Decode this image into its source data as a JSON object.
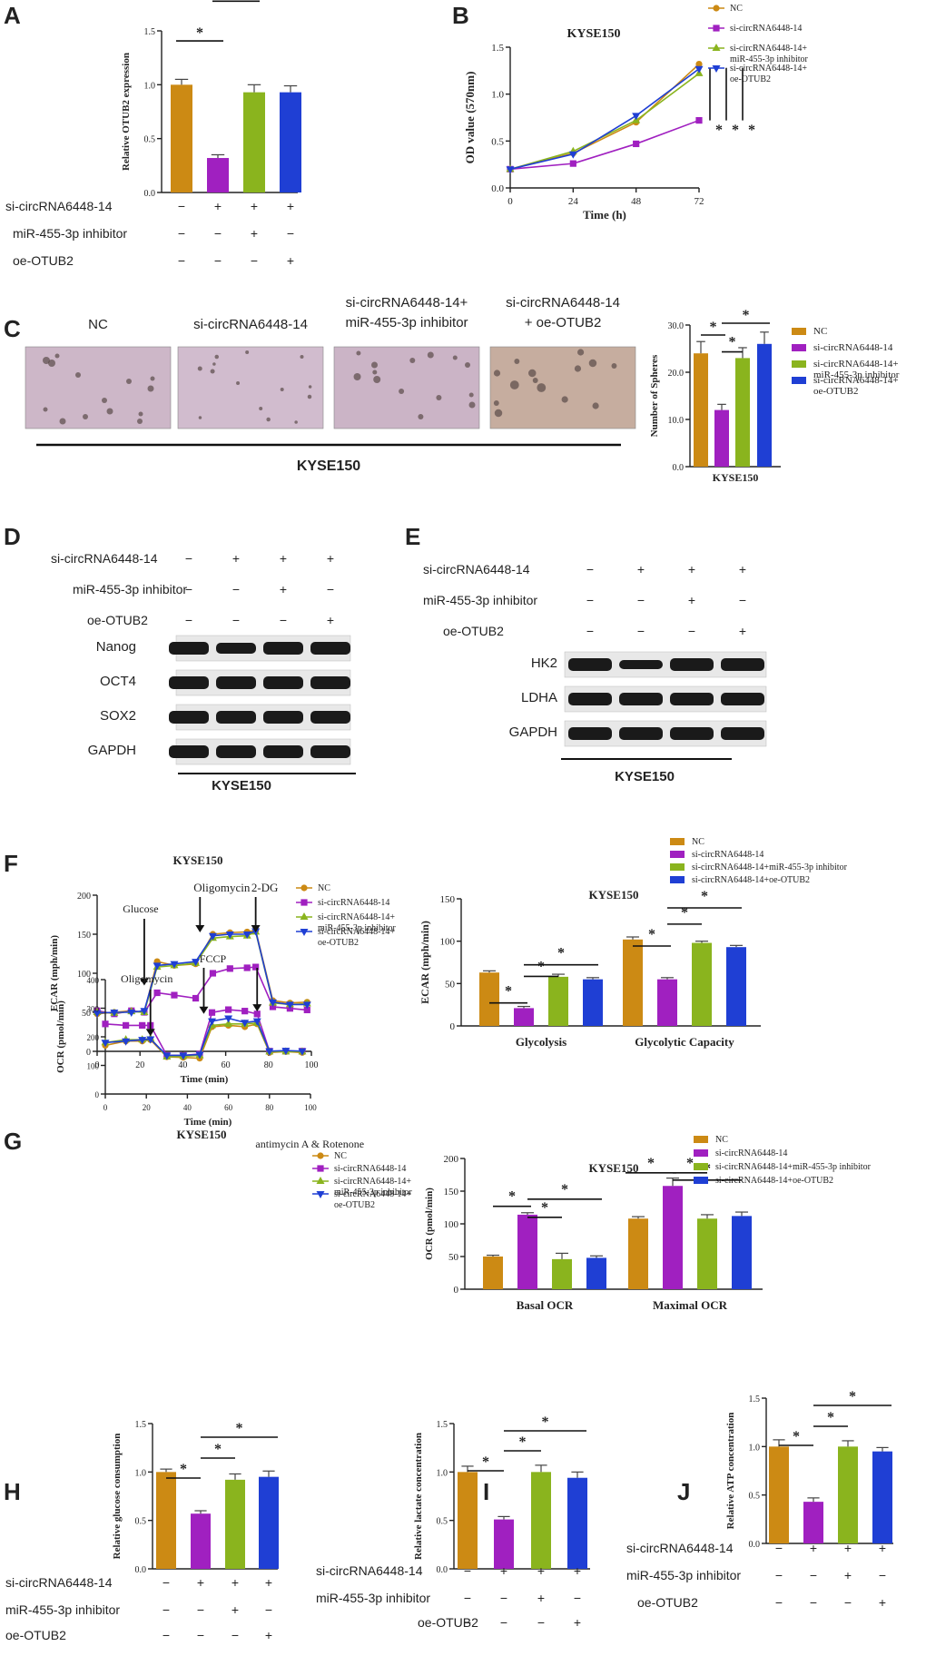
{
  "colors": {
    "NC": "#cc8a14",
    "si": "#a020c0",
    "inh": "#8ab41e",
    "oe": "#1f3fd4",
    "black": "#222222"
  },
  "treatment_rows": {
    "si": "si-circRNA6448-14",
    "inh": "miR-455-3p inhibitor",
    "oe": "oe-OTUB2",
    "pattern_si": [
      "−",
      "+",
      "+",
      "+"
    ],
    "pattern_inh": [
      "−",
      "−",
      "+",
      "−"
    ],
    "pattern_oe": [
      "−",
      "−",
      "−",
      "+"
    ]
  },
  "groups": [
    "NC",
    "si-circRNA6448-14",
    "si-circRNA6448-14+ miR-455-3p inhibitor",
    "si-circRNA6448-14+ oe-OTUB2"
  ],
  "legend_short": [
    "NC",
    "si-circRNA6448-14",
    "si-circRNA6448-14+miR-455-3p inhibitor",
    "si-circRNA6448-14+oe-OTUB2"
  ],
  "legend_two_line": [
    [
      "NC"
    ],
    [
      "si-circRNA6448-14"
    ],
    [
      "si-circRNA6448-14+",
      "miR-455-3p inhibitor"
    ],
    [
      "si-circRNA6448-14+",
      "oe-OTUB2"
    ]
  ],
  "cell_line": "KYSE150",
  "panels": {
    "A": {
      "letter": "A"
    },
    "B": {
      "letter": "B"
    },
    "C": {
      "letter": "C"
    },
    "D": {
      "letter": "D"
    },
    "E": {
      "letter": "E"
    },
    "F": {
      "letter": "F"
    },
    "G": {
      "letter": "G"
    },
    "H": {
      "letter": "H"
    },
    "I": {
      "letter": "I"
    },
    "J": {
      "letter": "J"
    }
  },
  "sig": "*",
  "sphere_images": {
    "labels": [
      "NC",
      "si-circRNA6448-14",
      "si-circRNA6448-14+\nmiR-455-3p inhibitor",
      "si-circRNA6448-14\n+ oe-OTUB2"
    ],
    "caption": "KYSE150"
  },
  "blot_D": {
    "bands": [
      "Nanog",
      "OCT4",
      "SOX2",
      "GAPDH"
    ],
    "caption": "KYSE150"
  },
  "blot_E": {
    "bands": [
      "HK2",
      "LDHA",
      "GAPDH"
    ],
    "caption": "KYSE150"
  },
  "injections_F": [
    "Glucose",
    "Oligomycin",
    "2-DG"
  ],
  "injections_G": [
    "Oligomycin",
    "FCCP",
    "antimycin A & Rotenone"
  ],
  "chart_data": [
    {
      "id": "A",
      "type": "bar",
      "title": "",
      "ylabel": "Relative OTUB2 expression",
      "ylim": [
        0,
        1.5
      ],
      "yticks": [
        0,
        0.5,
        1.0,
        1.5
      ],
      "values": [
        1.0,
        0.32,
        0.93,
        0.93
      ],
      "errors": [
        0.05,
        0.03,
        0.07,
        0.06
      ]
    },
    {
      "id": "B",
      "type": "line",
      "title": "KYSE150",
      "xlabel": "Time (h)",
      "ylabel": "OD value (570nm)",
      "xlim": [
        0,
        72
      ],
      "ylim": [
        0,
        1.5
      ],
      "xticks": [
        0,
        24,
        48,
        72
      ],
      "yticks": [
        0,
        0.5,
        1.0,
        1.5
      ],
      "x": [
        0,
        24,
        48,
        72
      ],
      "series": [
        {
          "name": "NC",
          "values": [
            0.2,
            0.37,
            0.7,
            1.32
          ],
          "marker": "circle"
        },
        {
          "name": "si-circRNA6448-14",
          "values": [
            0.2,
            0.26,
            0.47,
            0.72
          ],
          "marker": "square"
        },
        {
          "name": "si-circRNA6448-14+miR-455-3p inhibitor",
          "values": [
            0.2,
            0.39,
            0.72,
            1.22
          ],
          "marker": "triangle-up"
        },
        {
          "name": "si-circRNA6448-14+oe-OTUB2",
          "values": [
            0.2,
            0.36,
            0.77,
            1.27
          ],
          "marker": "triangle-down"
        }
      ]
    },
    {
      "id": "C",
      "type": "bar",
      "xlabel": "KYSE150",
      "ylabel": "Number of Spheres",
      "ylim": [
        0,
        30
      ],
      "yticks": [
        0,
        10,
        20,
        30
      ],
      "values": [
        24,
        12,
        23,
        26
      ],
      "errors": [
        2.5,
        1.2,
        2.2,
        2.5
      ]
    },
    {
      "id": "F_line",
      "type": "line",
      "title": "KYSE150",
      "xlabel": "Time (min)",
      "ylabel": "ECAR (mph/min)",
      "xlim": [
        0,
        100
      ],
      "ylim": [
        0,
        200
      ],
      "xticks": [
        0,
        20,
        40,
        60,
        80,
        100
      ],
      "yticks": [
        0,
        50,
        100,
        150,
        200
      ],
      "x": [
        0,
        8,
        16,
        22,
        28,
        36,
        46,
        54,
        62,
        70,
        74,
        82,
        90,
        98
      ],
      "series": [
        {
          "name": "NC",
          "values": [
            48,
            50,
            52,
            50,
            115,
            110,
            112,
            150,
            152,
            153,
            155,
            65,
            62,
            63
          ]
        },
        {
          "name": "si-circRNA6448-14",
          "values": [
            52,
            48,
            52,
            50,
            75,
            72,
            68,
            100,
            106,
            107,
            108,
            57,
            55,
            53
          ]
        },
        {
          "name": "si-circRNA6448-14+miR-455-3p inhibitor",
          "values": [
            50,
            49,
            51,
            50,
            108,
            110,
            113,
            145,
            147,
            148,
            153,
            62,
            60,
            61
          ]
        },
        {
          "name": "si-circRNA6448-14+oe-OTUB2",
          "values": [
            49,
            50,
            50,
            52,
            110,
            112,
            115,
            148,
            150,
            150,
            154,
            63,
            60,
            60
          ]
        }
      ]
    },
    {
      "id": "F_bar",
      "type": "bar",
      "title": "KYSE150",
      "ylabel": "ECAR (mph/min)",
      "ylim": [
        0,
        150
      ],
      "yticks": [
        0,
        50,
        100,
        150
      ],
      "categories": [
        "Glycolysis",
        "Glycolytic Capacity"
      ],
      "series": [
        {
          "name": "NC",
          "values": [
            63,
            102
          ],
          "errors": [
            2,
            3
          ]
        },
        {
          "name": "si-circRNA6448-14",
          "values": [
            21,
            55
          ],
          "errors": [
            2,
            2
          ]
        },
        {
          "name": "si-circRNA6448-14+miR-455-3p inhibitor",
          "values": [
            58,
            98
          ],
          "errors": [
            3,
            2
          ]
        },
        {
          "name": "si-circRNA6448-14+oe-OTUB2",
          "values": [
            55,
            93
          ],
          "errors": [
            2,
            2
          ]
        }
      ]
    },
    {
      "id": "G_line",
      "type": "line",
      "title": "KYSE150",
      "xlabel": "Time (min)",
      "ylabel": "OCR (pmol/min)",
      "xlim": [
        0,
        100
      ],
      "ylim": [
        0,
        400
      ],
      "xticks": [
        0,
        20,
        40,
        60,
        80,
        100
      ],
      "yticks": [
        0,
        100,
        200,
        300,
        400
      ],
      "x": [
        0,
        10,
        18,
        22,
        30,
        38,
        46,
        52,
        60,
        68,
        74,
        80,
        88,
        96
      ],
      "series": [
        {
          "name": "NC",
          "values": [
            170,
            185,
            185,
            190,
            130,
            128,
            125,
            235,
            240,
            235,
            245,
            145,
            148,
            145
          ]
        },
        {
          "name": "si-circRNA6448-14",
          "values": [
            245,
            240,
            240,
            240,
            135,
            135,
            140,
            285,
            295,
            290,
            280,
            150,
            150,
            150
          ]
        },
        {
          "name": "si-circRNA6448-14+miR-455-3p inhibitor",
          "values": [
            180,
            190,
            190,
            195,
            130,
            132,
            135,
            240,
            245,
            245,
            248,
            148,
            148,
            148
          ]
        },
        {
          "name": "si-circRNA6448-14+oe-OTUB2",
          "values": [
            180,
            185,
            190,
            192,
            135,
            135,
            138,
            255,
            265,
            250,
            255,
            150,
            152,
            150
          ]
        }
      ]
    },
    {
      "id": "G_bar",
      "type": "bar",
      "title": "KYSE150",
      "ylabel": "OCR (pmol/min)",
      "ylim": [
        0,
        200
      ],
      "yticks": [
        0,
        50,
        100,
        150,
        200
      ],
      "categories": [
        "Basal OCR",
        "Maximal OCR"
      ],
      "series": [
        {
          "name": "NC",
          "values": [
            50,
            108
          ],
          "errors": [
            2,
            3
          ]
        },
        {
          "name": "si-circRNA6448-14",
          "values": [
            114,
            158
          ],
          "errors": [
            3,
            12
          ]
        },
        {
          "name": "si-circRNA6448-14+miR-455-3p inhibitor",
          "values": [
            46,
            108
          ],
          "errors": [
            9,
            6
          ]
        },
        {
          "name": "si-circRNA6448-14+oe-OTUB2",
          "values": [
            48,
            112
          ],
          "errors": [
            3,
            6
          ]
        }
      ]
    },
    {
      "id": "H",
      "type": "bar",
      "ylabel": "Relative glucose consumption",
      "ylim": [
        0,
        1.5
      ],
      "yticks": [
        0,
        0.5,
        1.0,
        1.5
      ],
      "values": [
        1.0,
        0.57,
        0.92,
        0.95
      ],
      "errors": [
        0.03,
        0.03,
        0.06,
        0.06
      ]
    },
    {
      "id": "I",
      "type": "bar",
      "ylabel": "Relative lactate concentration",
      "ylim": [
        0,
        1.5
      ],
      "yticks": [
        0,
        0.5,
        1.0,
        1.5
      ],
      "values": [
        1.0,
        0.51,
        1.0,
        0.94
      ],
      "errors": [
        0.06,
        0.03,
        0.07,
        0.06
      ]
    },
    {
      "id": "J",
      "type": "bar",
      "ylabel": "Relative ATP concentration",
      "ylim": [
        0,
        1.5
      ],
      "yticks": [
        0,
        0.5,
        1.0,
        1.5
      ],
      "values": [
        1.0,
        0.43,
        1.0,
        0.95
      ],
      "errors": [
        0.07,
        0.04,
        0.06,
        0.04
      ]
    }
  ]
}
